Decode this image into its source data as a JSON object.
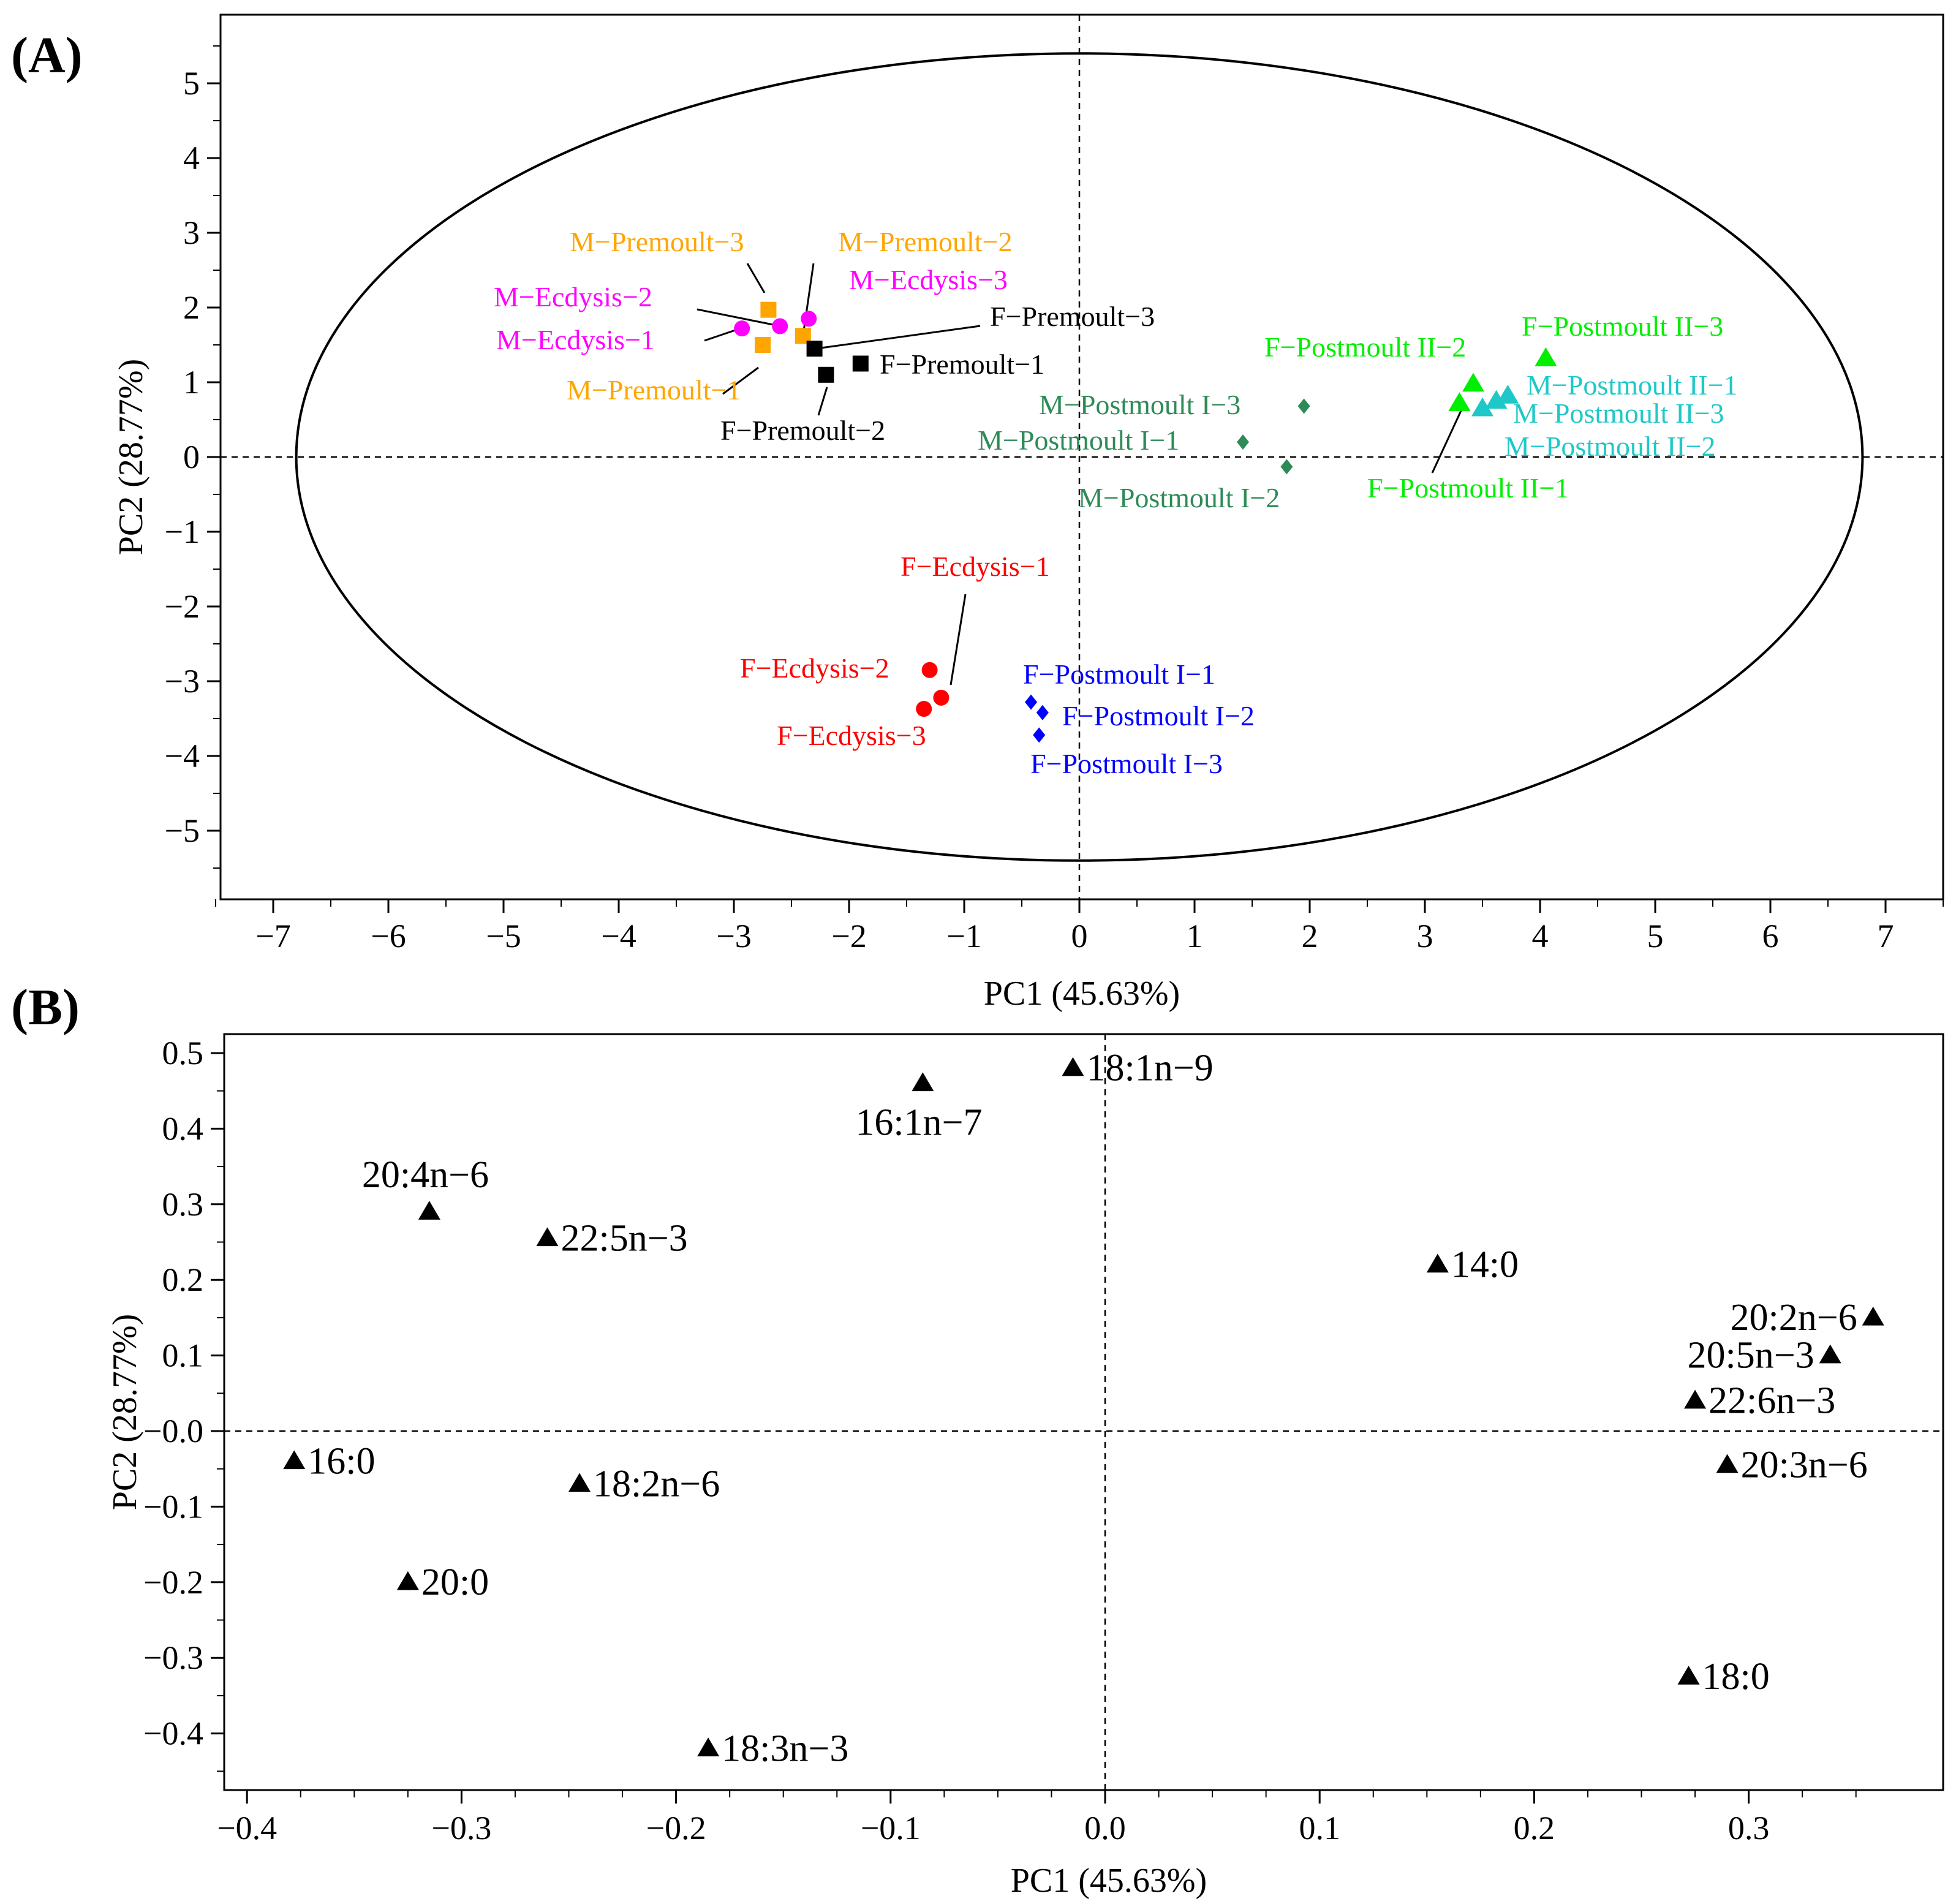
{
  "chart_data": [
    {
      "type": "scatter",
      "panel": "(A)",
      "xlabel": "PC1 (45.63%)",
      "ylabel": "PC2 (28.77%)",
      "xlim": [
        -7.5,
        7.5
      ],
      "ylim": [
        -5.9,
        5.9
      ],
      "xticks": [
        -7,
        -6,
        -5,
        -4,
        -3,
        -2,
        -1,
        0,
        1,
        2,
        3,
        4,
        5,
        6,
        7
      ],
      "yticks": [
        -5,
        -4,
        -3,
        -2,
        -1,
        0,
        1,
        2,
        3,
        4,
        5
      ],
      "reference_lines": {
        "x": 0,
        "y": 0
      },
      "ellipse": {
        "cx": 0,
        "cy": 0,
        "rx": 6.8,
        "ry": 5.4
      },
      "groups": [
        {
          "name": "M-Premoult",
          "color": "#FFA500",
          "marker": "square",
          "points": [
            {
              "label": "M−Premoult−1",
              "x": -2.75,
              "y": 1.5
            },
            {
              "label": "M−Premoult−2",
              "x": -2.4,
              "y": 1.62
            },
            {
              "label": "M−Premoult−3",
              "x": -2.7,
              "y": 1.97
            }
          ]
        },
        {
          "name": "M-Ecdysis",
          "color": "#FF00FF",
          "marker": "circle",
          "points": [
            {
              "label": "M−Ecdysis−1",
              "x": -2.93,
              "y": 1.72
            },
            {
              "label": "M−Ecdysis−2",
              "x": -2.6,
              "y": 1.75
            },
            {
              "label": "M−Ecdysis−3",
              "x": -2.35,
              "y": 1.85
            }
          ]
        },
        {
          "name": "F-Premoult",
          "color": "#000000",
          "marker": "square",
          "points": [
            {
              "label": "F−Premoult−1",
              "x": -1.9,
              "y": 1.25
            },
            {
              "label": "F−Premoult−2",
              "x": -2.2,
              "y": 1.1
            },
            {
              "label": "F−Premoult−3",
              "x": -2.3,
              "y": 1.45
            }
          ]
        },
        {
          "name": "F-Ecdysis",
          "color": "#FF0000",
          "marker": "circle",
          "points": [
            {
              "label": "F−Ecdysis−1",
              "x": -1.2,
              "y": -3.22
            },
            {
              "label": "F−Ecdysis−2",
              "x": -1.3,
              "y": -2.85
            },
            {
              "label": "F−Ecdysis−3",
              "x": -1.35,
              "y": -3.37
            }
          ]
        },
        {
          "name": "F-Postmoult I",
          "color": "#0000FF",
          "marker": "diamond",
          "points": [
            {
              "label": "F−Postmoult I−1",
              "x": -0.42,
              "y": -3.28
            },
            {
              "label": "F−Postmoult I−2",
              "x": -0.32,
              "y": -3.42
            },
            {
              "label": "F−Postmoult I−3",
              "x": -0.35,
              "y": -3.72
            }
          ]
        },
        {
          "name": "M-Postmoult I",
          "color": "#2E8B57",
          "marker": "diamond",
          "points": [
            {
              "label": "M−Postmoult I−1",
              "x": 1.42,
              "y": 0.2
            },
            {
              "label": "M−Postmoult I−2",
              "x": 1.8,
              "y": -0.13
            },
            {
              "label": "M−Postmoult I−3",
              "x": 1.95,
              "y": 0.68
            }
          ]
        },
        {
          "name": "F-Postmoult II",
          "color": "#00EE00",
          "marker": "triangle",
          "points": [
            {
              "label": "F−Postmoult II−1",
              "x": 3.3,
              "y": 0.72
            },
            {
              "label": "F−Postmoult II−2",
              "x": 3.42,
              "y": 0.98
            },
            {
              "label": "F−Postmoult II−3",
              "x": 4.05,
              "y": 1.32
            }
          ]
        },
        {
          "name": "M-Postmoult II",
          "color": "#1FC8C8",
          "marker": "triangle",
          "points": [
            {
              "label": "M−Postmoult II−1",
              "x": 3.72,
              "y": 0.82
            },
            {
              "label": "M−Postmoult II−2",
              "x": 3.5,
              "y": 0.65
            },
            {
              "label": "M−Postmoult II−3",
              "x": 3.62,
              "y": 0.75
            }
          ]
        }
      ]
    },
    {
      "type": "scatter",
      "panel": "(B)",
      "xlabel": "PC1 (45.63%)",
      "ylabel": "PC2 (28.77%)",
      "xlim": [
        -0.41,
        0.375
      ],
      "ylim": [
        -0.47,
        0.53
      ],
      "xticks": [
        -0.4,
        -0.3,
        -0.2,
        -0.1,
        0.0,
        0.1,
        0.2,
        0.3
      ],
      "xticklabels": [
        "−0.4",
        "−0.3",
        "−0.2",
        "−0.1",
        "0.0",
        "0.1",
        "0.2",
        "0.3"
      ],
      "yticks": [
        -0.4,
        -0.3,
        -0.2,
        -0.1,
        0.0,
        0.1,
        0.2,
        0.3,
        0.4,
        0.5
      ],
      "yticklabels": [
        "−0.4",
        "−0.3",
        "−0.2",
        "−0.1",
        "−0.0",
        "0.1",
        "0.2",
        "0.3",
        "0.4",
        "0.5"
      ],
      "reference_lines": {
        "x": 0,
        "y": 0
      },
      "marker": "triangle",
      "color": "#000000",
      "points": [
        {
          "label": "18:1n−9",
          "x": -0.015,
          "y": 0.48,
          "pos": "right"
        },
        {
          "label": "16:1n−7",
          "x": -0.085,
          "y": 0.46,
          "pos": "below"
        },
        {
          "label": "20:4n−6",
          "x": -0.315,
          "y": 0.29,
          "pos": "above"
        },
        {
          "label": "22:5n−3",
          "x": -0.26,
          "y": 0.255,
          "pos": "right"
        },
        {
          "label": "14:0",
          "x": 0.155,
          "y": 0.22,
          "pos": "right"
        },
        {
          "label": "20:2n−6",
          "x": 0.358,
          "y": 0.15,
          "pos": "left"
        },
        {
          "label": "20:5n−3",
          "x": 0.338,
          "y": 0.1,
          "pos": "left"
        },
        {
          "label": "22:6n−3",
          "x": 0.275,
          "y": 0.04,
          "pos": "right"
        },
        {
          "label": "16:0",
          "x": -0.378,
          "y": -0.04,
          "pos": "right"
        },
        {
          "label": "20:3n−6",
          "x": 0.29,
          "y": -0.045,
          "pos": "right"
        },
        {
          "label": "18:2n−6",
          "x": -0.245,
          "y": -0.07,
          "pos": "right"
        },
        {
          "label": "20:0",
          "x": -0.325,
          "y": -0.2,
          "pos": "right"
        },
        {
          "label": "18:0",
          "x": 0.272,
          "y": -0.325,
          "pos": "right"
        },
        {
          "label": "18:3n−3",
          "x": -0.185,
          "y": -0.42,
          "pos": "right"
        }
      ]
    }
  ]
}
